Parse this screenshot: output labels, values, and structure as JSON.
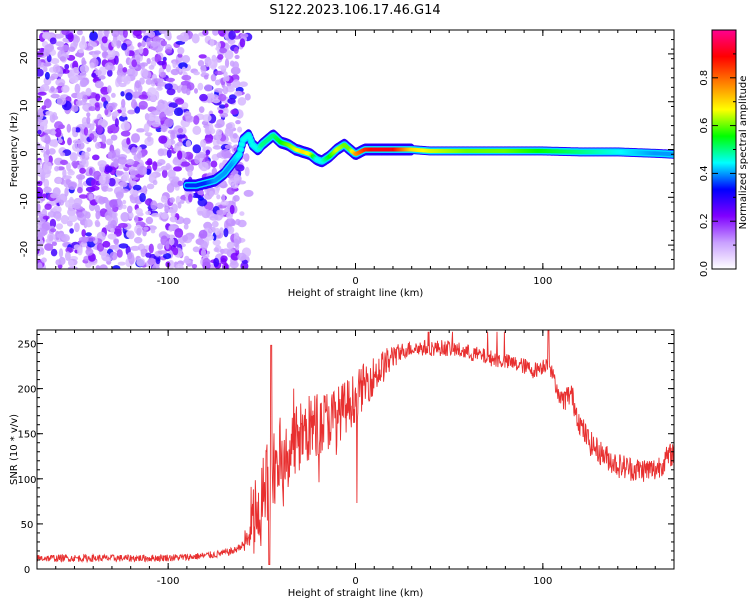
{
  "title": "S122.2023.106.17.46.G14",
  "chart_data": [
    {
      "type": "heatmap",
      "xlabel": "Height of straight line (km)",
      "ylabel": "Frequency (Hz)",
      "xlim": [
        -170,
        170
      ],
      "ylim": [
        -25,
        25
      ],
      "xticks": [
        -100,
        0,
        100
      ],
      "yticks": [
        -20,
        -10,
        0,
        10,
        20
      ],
      "colorbar": {
        "label": "Normalized spectral amplitude",
        "range": [
          0,
          1
        ],
        "ticks": [
          "0.0",
          "0.2",
          "0.4",
          "0.6",
          "0.8"
        ],
        "colors": [
          "#ffffff",
          "#c9a0ff",
          "#8000ff",
          "#0000ff",
          "#00ffff",
          "#00ff00",
          "#ffff00",
          "#ff8000",
          "#ff0000",
          "#ff0090"
        ]
      },
      "noise_region": {
        "x": [
          -170,
          -65
        ],
        "y": [
          -25,
          25
        ]
      },
      "ridge": {
        "x": [
          -90,
          -85,
          -80,
          -75,
          -70,
          -66,
          -62,
          -60,
          -57,
          -55,
          -52,
          -50,
          -47,
          -44,
          -40,
          -36,
          -32,
          -28,
          -24,
          -21,
          -18,
          -14,
          -10,
          -6,
          -3,
          0,
          5,
          10,
          20,
          30,
          40,
          60,
          80,
          100,
          120,
          140,
          160,
          170
        ],
        "y": [
          -7.5,
          -7.5,
          -7,
          -6.5,
          -5,
          -3,
          -1,
          2,
          3,
          1,
          0,
          1,
          2,
          3,
          1.5,
          1,
          0,
          -0.5,
          -1,
          -2,
          -2.5,
          -1.5,
          0,
          1,
          0,
          -1,
          0,
          0,
          0,
          0,
          -0.3,
          -0.3,
          -0.3,
          -0.3,
          -0.5,
          -0.5,
          -0.8,
          -1
        ],
        "amplitude": [
          0.35,
          0.35,
          0.35,
          0.4,
          0.4,
          0.4,
          0.45,
          0.45,
          0.45,
          0.45,
          0.45,
          0.5,
          0.5,
          0.5,
          0.55,
          0.6,
          0.65,
          0.7,
          0.65,
          0.45,
          0.45,
          0.55,
          0.65,
          0.6,
          0.6,
          0.75,
          0.85,
          0.9,
          0.9,
          0.7,
          0.65,
          0.6,
          0.6,
          0.55,
          0.5,
          0.45,
          0.4,
          0.4
        ]
      }
    },
    {
      "type": "line",
      "xlabel": "Height of straight line (km)",
      "ylabel": "SNR (10 * v/v)",
      "xlim": [
        -170,
        170
      ],
      "ylim": [
        0,
        265
      ],
      "xticks": [
        -100,
        0,
        100
      ],
      "yticks": [
        0,
        50,
        100,
        150,
        200,
        250
      ],
      "color": "#e83030",
      "series": [
        {
          "x": [
            -170,
            -150,
            -130,
            -110,
            -90,
            -75,
            -65,
            -58,
            -54,
            -50,
            -47,
            -44,
            -40,
            -35,
            -30,
            -25,
            -20,
            -15,
            -10,
            -5,
            0,
            5,
            10,
            15,
            20,
            25,
            30,
            40,
            50,
            60,
            70,
            80,
            90,
            95,
            100,
            103,
            106,
            110,
            115,
            120,
            125,
            130,
            140,
            150,
            160,
            165,
            170
          ],
          "y": [
            12,
            12,
            12,
            12,
            13,
            16,
            20,
            30,
            55,
            75,
            95,
            110,
            125,
            135,
            145,
            155,
            160,
            165,
            170,
            180,
            190,
            205,
            215,
            225,
            235,
            242,
            245,
            245,
            245,
            240,
            235,
            230,
            225,
            220,
            225,
            230,
            210,
            185,
            195,
            160,
            140,
            130,
            115,
            110,
            110,
            120,
            130
          ]
        }
      ]
    }
  ]
}
